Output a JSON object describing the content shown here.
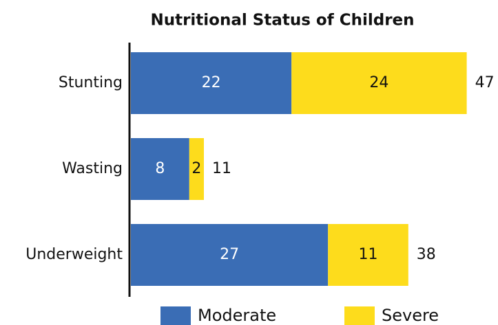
{
  "chart_data": {
    "type": "bar",
    "orientation": "horizontal",
    "stacked": true,
    "title": "Nutritional Status of Children",
    "categories": [
      "Stunting",
      "Wasting",
      "Underweight"
    ],
    "series": [
      {
        "name": "Moderate",
        "color": "#3a6db5",
        "values": [
          22,
          8,
          27
        ]
      },
      {
        "name": "Severe",
        "color": "#fddc1c",
        "values": [
          24,
          2,
          11
        ]
      }
    ],
    "totals": [
      47,
      11,
      38
    ],
    "legend": "bottom"
  }
}
